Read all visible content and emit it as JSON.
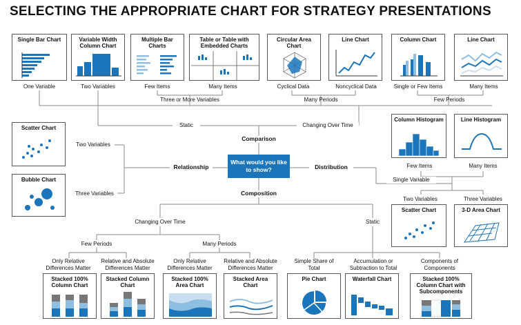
{
  "title": "SELECTING THE APPROPRIATE CHART FOR STRATEGY PRESENTATIONS",
  "center_question": "What would you like to show?",
  "categories": {
    "comparison": "Comparison",
    "relationship": "Relationship",
    "distribution": "Distribution",
    "composition": "Composition"
  },
  "charts": {
    "single_bar": "Single Bar Chart",
    "variable_width": "Variable Width Column Chart",
    "multiple_bar": "Multiple Bar Charts",
    "table": "Table or Table with Embedded Charts",
    "circular_area": "Circular Area Chart",
    "line_chart_1": "Line Chart",
    "column_chart": "Column Chart",
    "line_chart_2": "Line Chart",
    "scatter_1": "Scatter Chart",
    "bubble": "Bubble Chart",
    "column_histogram": "Column Histogram",
    "line_histogram": "Line Histogram",
    "scatter_2": "Scatter Chart",
    "area_3d": "3-D Area Chart",
    "stacked_100_column": "Stacked 100% Column Chart",
    "stacked_column": "Stacked Column Chart",
    "stacked_100_area": "Stacked 100% Area Chart",
    "stacked_area": "Stacked Area Chart",
    "pie": "Pie Chart",
    "waterfall": "Waterfall Chart",
    "stacked_100_sub": "Stacked 100% Column Chart with Subcomponents"
  },
  "labels": {
    "one_variable": "One Variable",
    "two_variables": "Two Variables",
    "few_items": "Few Items",
    "many_items": "Many Items",
    "three_or_more": "Three or More Variables",
    "cyclical": "Cyclical Data",
    "noncyclical": "Noncyclical Data",
    "single_or_few": "Single or Few Items",
    "many_items_2": "Many Items",
    "many_periods": "Many Periods",
    "few_periods": "Few Periods",
    "static": "Static",
    "changing": "Changing Over Time",
    "rel_two_vars": "Two Variables",
    "rel_three_vars": "Three Variables",
    "dist_few_items": "Few Items",
    "dist_many_items": "Many Items",
    "single_variable": "Single Variable",
    "dist_two_vars": "Two Variables",
    "dist_three_vars": "Three Variables",
    "comp_changing": "Changing Over Time",
    "comp_static": "Static",
    "comp_few_periods": "Few Periods",
    "comp_many_periods": "Many Periods",
    "only_relative_1": "Only Relative Differences Matter",
    "relative_absolute_1": "Relative and Absolute Differences Matter",
    "only_relative_2": "Only Relative Differences Matter",
    "relative_absolute_2": "Relative and Absolute Differences Matter",
    "simple_share": "Simple Share of Total",
    "accumulation": "Accumulation or Subtraction to Total",
    "components": "Components of Components"
  },
  "colors": {
    "primary": "#1b75bb",
    "light": "#8fbfe0",
    "pale": "#c9def0",
    "gray": "#777777"
  }
}
